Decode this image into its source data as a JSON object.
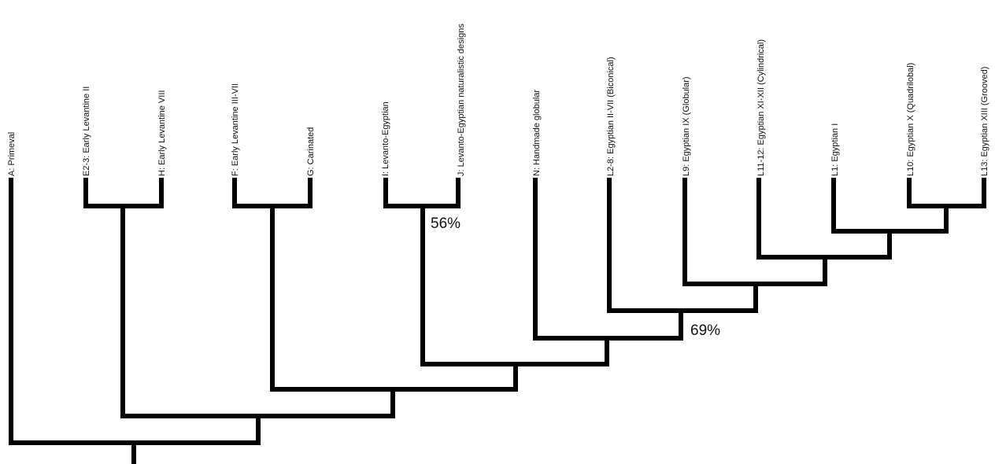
{
  "diagram": {
    "stroke_color": "#000000",
    "text_color": "#111111",
    "taxa": [
      {
        "id": "A",
        "label": "A: Primeval"
      },
      {
        "id": "E",
        "label": "E2-3: Early Levantine II"
      },
      {
        "id": "H",
        "label": "H: Early Levantine VIII"
      },
      {
        "id": "F",
        "label": "F: Early Levantine III-VII"
      },
      {
        "id": "G",
        "label": "G: Carinated"
      },
      {
        "id": "I",
        "label": "I: Levanto-Egyptian"
      },
      {
        "id": "J",
        "label": "J: Levanto-Egyptian naturalistic designs"
      },
      {
        "id": "N",
        "label": "N: Handmade globular"
      },
      {
        "id": "L2",
        "label": "L2-8: Egyptian II-VII (Biconical)"
      },
      {
        "id": "L9",
        "label": "L9: Egyptian IX (Globular)"
      },
      {
        "id": "L11",
        "label": "L11-12: Egyptian XI-XII (Cylindrical)"
      },
      {
        "id": "L1",
        "label": "L1: Egyptian I"
      },
      {
        "id": "L10",
        "label": "L10: Egyptian X (Quadrilobal)"
      },
      {
        "id": "L13",
        "label": "L13: Egyptian XIII (Grooved)"
      }
    ],
    "support_values": [
      {
        "id": "s_ij",
        "text": "56%"
      },
      {
        "id": "s_n",
        "text": "69%"
      }
    ]
  }
}
